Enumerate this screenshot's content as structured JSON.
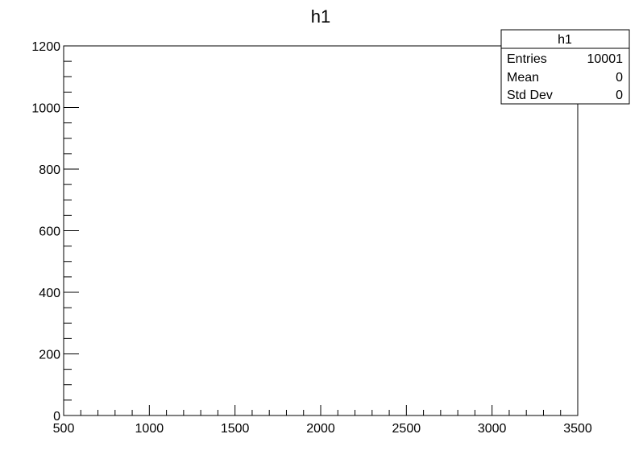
{
  "chart_data": {
    "type": "bar",
    "title": "h1",
    "xlabel": "",
    "ylabel": "",
    "xlim": [
      500,
      3500
    ],
    "ylim": [
      0,
      1200
    ],
    "x_ticks": [
      500,
      1000,
      1500,
      2000,
      2500,
      3000,
      3500
    ],
    "y_ticks": [
      0,
      200,
      400,
      600,
      800,
      1000,
      1200
    ],
    "x_tick_labels": [
      "500",
      "1000",
      "1500",
      "2000",
      "2500",
      "3000",
      "3500"
    ],
    "y_tick_labels": [
      "0",
      "200",
      "400",
      "600",
      "800",
      "1000",
      "1200"
    ],
    "series": [
      {
        "values": []
      }
    ],
    "grid": false,
    "stats_box": {
      "placement": "top-right",
      "title": "h1",
      "rows": [
        {
          "label": "Entries",
          "value": "10001"
        },
        {
          "label": "Mean",
          "value": "0"
        },
        {
          "label": "Std Dev",
          "value": "0"
        }
      ]
    }
  }
}
